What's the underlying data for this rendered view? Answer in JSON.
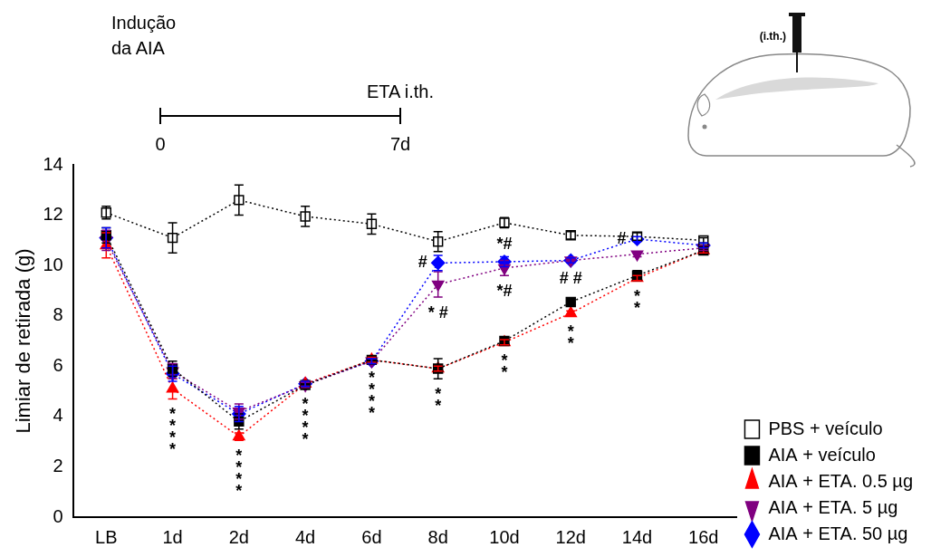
{
  "chart_data": {
    "type": "line",
    "y_label": "Limiar de retirada (g)",
    "categories": [
      "LB",
      "1d",
      "2d",
      "4d",
      "6d",
      "8d",
      "10d",
      "12d",
      "14d",
      "16d"
    ],
    "series": [
      {
        "name": "PBS + veículo",
        "color": "#000000",
        "marker": "square-open",
        "line_style": "dotted",
        "values": [
          12.1,
          11.1,
          12.6,
          11.95,
          11.65,
          10.95,
          11.7,
          11.2,
          11.15,
          11.0
        ],
        "errors": [
          0.25,
          0.6,
          0.6,
          0.4,
          0.4,
          0.4,
          0.2,
          0.15,
          0.15,
          0.1
        ]
      },
      {
        "name": "AIA + veículo",
        "color": "#000000",
        "marker": "square",
        "line_style": "dotted",
        "values": [
          11.2,
          5.9,
          3.8,
          5.25,
          6.25,
          5.9,
          7.0,
          8.55,
          9.6,
          10.6
        ],
        "errors": [
          0.3,
          0.3,
          0.3,
          0.15,
          0.1,
          0.4,
          0.15,
          0.15,
          0.2,
          0.1
        ]
      },
      {
        "name": "AIA + ETA. 0.5 µg",
        "color": "#ff0000",
        "marker": "triangle",
        "line_style": "dotted",
        "values": [
          10.8,
          5.1,
          3.2,
          5.3,
          6.25,
          5.9,
          6.95,
          8.1,
          9.5,
          10.6
        ],
        "errors": [
          0.5,
          0.4,
          0.15,
          0.1,
          0.1,
          0.1,
          0.1,
          0.1,
          0.1,
          0.1
        ]
      },
      {
        "name": "AIA + ETA. 5 µg",
        "color": "#800080",
        "marker": "triangle-down",
        "line_style": "dotted",
        "values": [
          11.0,
          5.8,
          4.2,
          5.25,
          6.2,
          9.25,
          9.9,
          10.2,
          10.45,
          10.7
        ],
        "errors": [
          0.4,
          0.3,
          0.3,
          0.1,
          0.1,
          0.5,
          0.3,
          0.1,
          0.1,
          0.1
        ]
      },
      {
        "name": "AIA + ETA. 50 µg",
        "color": "#0000ff",
        "marker": "diamond",
        "line_style": "dotted",
        "values": [
          11.1,
          5.7,
          4.1,
          5.3,
          6.2,
          10.1,
          10.15,
          10.2,
          11.05,
          10.8
        ],
        "errors": [
          0.4,
          0.3,
          0.3,
          0.1,
          0.1,
          0.3,
          0.2,
          0.1,
          0.1,
          0.1
        ]
      }
    ],
    "ylim": [
      0,
      14
    ],
    "yticks": [
      0,
      2,
      4,
      6,
      8,
      10,
      12,
      14
    ],
    "grid": false,
    "legend": "right",
    "annotations": [
      {
        "series": "AIA + ETA. 0.5 µg",
        "x": "1d",
        "position": "below",
        "lines": [
          "*",
          "*",
          "*",
          "*"
        ]
      },
      {
        "series": "AIA + ETA. 0.5 µg",
        "x": "2d",
        "position": "below",
        "lines": [
          "*",
          "*",
          "*",
          "*"
        ]
      },
      {
        "series": "AIA + veículo",
        "x": "4d",
        "position": "below",
        "lines": [
          "*",
          "*",
          "*",
          "*"
        ]
      },
      {
        "series": "AIA + veículo",
        "x": "6d",
        "position": "below",
        "lines": [
          "*",
          "*",
          "*",
          "*"
        ]
      },
      {
        "series": "AIA + veículo",
        "x": "8d",
        "position": "below",
        "lines": [
          "*",
          "*"
        ]
      },
      {
        "series": "AIA + ETA. 5 µg",
        "x": "8d",
        "position": "below",
        "lines": [
          "* #"
        ]
      },
      {
        "series": "AIA + ETA. 50 µg",
        "x": "8d",
        "position": "left",
        "lines": [
          "#"
        ]
      },
      {
        "series": "AIA + ETA. 50 µg",
        "x": "10d",
        "position": "above",
        "lines": [
          "*#"
        ]
      },
      {
        "series": "AIA + ETA. 5 µg",
        "x": "10d",
        "position": "below",
        "lines": [
          "*#"
        ]
      },
      {
        "series": "AIA + veículo",
        "x": "10d",
        "position": "below",
        "lines": [
          "*",
          "*"
        ]
      },
      {
        "series": "AIA + ETA. 5 µg",
        "x": "12d",
        "position": "below",
        "lines": [
          "# #"
        ]
      },
      {
        "series": "AIA + ETA. 0.5 µg",
        "x": "12d",
        "position": "below",
        "lines": [
          "*",
          "*"
        ]
      },
      {
        "series": "AIA + ETA. 50 µg",
        "x": "14d",
        "position": "left",
        "lines": [
          "#"
        ]
      },
      {
        "series": "AIA + ETA. 0.5 µg",
        "x": "14d",
        "position": "below",
        "lines": [
          "*",
          "*"
        ]
      }
    ],
    "timeline": {
      "start_label": [
        "Indução",
        "da AIA"
      ],
      "end_label": "ETA i.th.",
      "ticks": [
        "0",
        "7d"
      ]
    },
    "inset_label": "(i.th.)"
  }
}
